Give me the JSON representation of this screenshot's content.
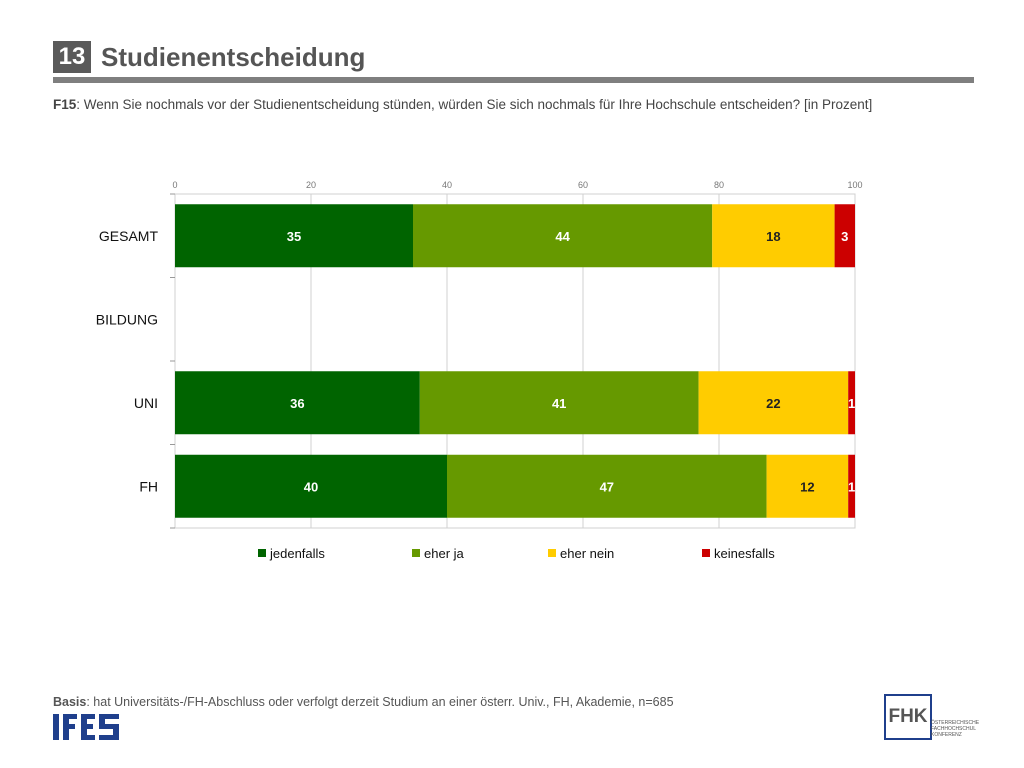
{
  "header": {
    "number": "13",
    "title": "Studienentscheidung"
  },
  "question": {
    "code": "F15",
    "text": ": Wenn Sie nochmals vor der Studienentscheidung stünden, würden Sie sich nochmals für Ihre Hochschule entscheiden? [in Prozent]"
  },
  "chart_data": {
    "type": "bar",
    "orientation": "horizontal",
    "stacked": true,
    "categories": [
      "GESAMT",
      "BILDUNG",
      "UNI",
      "FH"
    ],
    "series": [
      {
        "name": "jedenfalls",
        "values": [
          35,
          null,
          36,
          40
        ],
        "color": "#006400"
      },
      {
        "name": "eher ja",
        "values": [
          44,
          null,
          41,
          47
        ],
        "color": "#669900"
      },
      {
        "name": "eher nein",
        "values": [
          18,
          null,
          22,
          12
        ],
        "color": "#ffcc00"
      },
      {
        "name": "keinesfalls",
        "values": [
          3,
          null,
          1,
          1
        ],
        "color": "#cc0000"
      }
    ],
    "xlim": [
      0,
      100
    ],
    "xticks": [
      "0",
      "20",
      "40",
      "60",
      "80",
      "100"
    ],
    "grid": true,
    "legend_position": "bottom"
  },
  "footer": {
    "basis_label": "Basis",
    "basis_text": ": hat Universitäts-/FH-Abschluss oder verfolgt derzeit Studium an einer österr. Univ., FH, Akademie, n=685",
    "ifes_logo": "IFES",
    "fhk_logo": "FHK",
    "fhk_subtitle": [
      "ÖSTERREICHISCHE",
      "FACHHOCHSCHUL",
      "KONFERENZ"
    ]
  }
}
